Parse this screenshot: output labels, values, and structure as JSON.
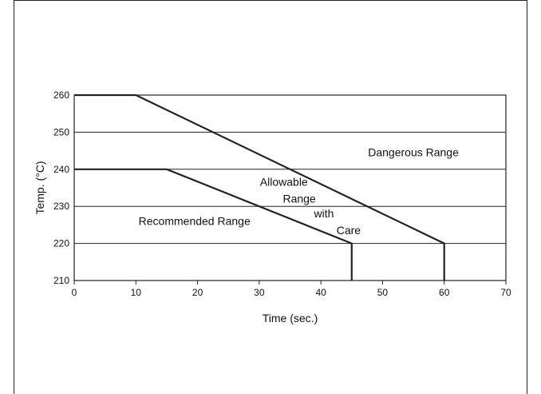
{
  "chart_data": {
    "type": "line",
    "title": "",
    "xlabel": "Time (sec.)",
    "ylabel": "Temp. (°C)",
    "xlim": [
      0,
      70
    ],
    "ylim": [
      210,
      260
    ],
    "xticks": [
      0,
      10,
      20,
      30,
      40,
      50,
      60,
      70
    ],
    "yticks": [
      210,
      220,
      230,
      240,
      250,
      260
    ],
    "grid": "horizontal",
    "series": [
      {
        "x": [
          0,
          10,
          60,
          60
        ],
        "y": [
          260,
          260,
          220,
          210
        ],
        "color": "#222222"
      },
      {
        "x": [
          0,
          15,
          45,
          45
        ],
        "y": [
          240,
          240,
          220,
          210
        ],
        "color": "#222222"
      }
    ],
    "annotations": [
      {
        "text": "Dangerous Range",
        "x": 55,
        "y": 243.5
      },
      {
        "text": "Allowable",
        "x": 34,
        "y": 235.5
      },
      {
        "text": "Range",
        "x": 36.5,
        "y": 231
      },
      {
        "text": "with",
        "x": 40.5,
        "y": 227
      },
      {
        "text": "Care",
        "x": 44.5,
        "y": 222.5
      },
      {
        "text": "Recommended Range",
        "x": 19.5,
        "y": 225
      }
    ]
  }
}
